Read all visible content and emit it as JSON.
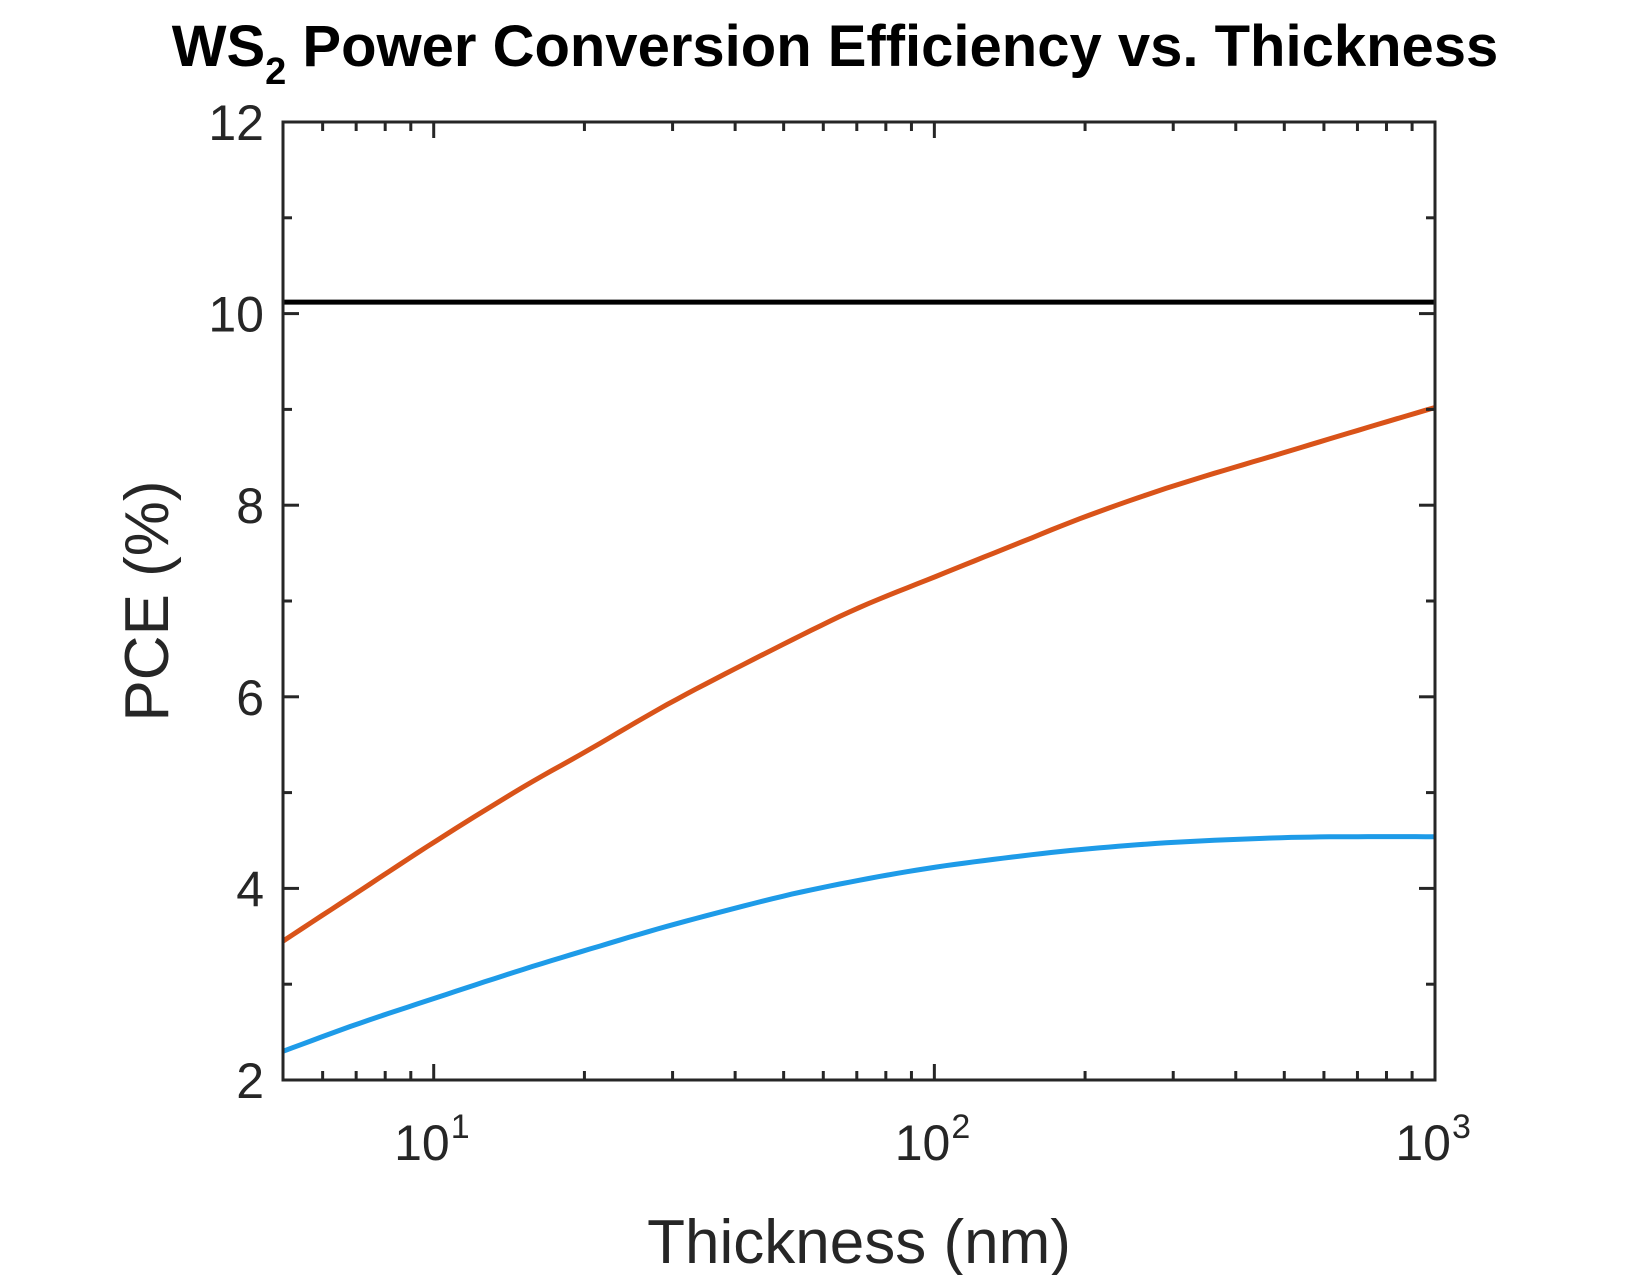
{
  "chart_data": {
    "type": "line",
    "title": {
      "main_prefix": "WS",
      "subscript": "2",
      "main_suffix": " Power Conversion Efficiency vs. Thickness"
    },
    "xlabel": "Thickness (nm)",
    "ylabel": "PCE (%)",
    "xscale": "log",
    "xlim": [
      5,
      1000
    ],
    "ylim": [
      2,
      12
    ],
    "grid": false,
    "x_ticks": [
      {
        "value": 10,
        "base": "10",
        "exponent": "1"
      },
      {
        "value": 100,
        "base": "10",
        "exponent": "2"
      },
      {
        "value": 1000,
        "base": "10",
        "exponent": "3"
      }
    ],
    "y_ticks": [
      {
        "value": 2,
        "label": "2"
      },
      {
        "value": 4,
        "label": "4"
      },
      {
        "value": 6,
        "label": "6"
      },
      {
        "value": 8,
        "label": "8"
      },
      {
        "value": 10,
        "label": "10"
      },
      {
        "value": 12,
        "label": "12"
      }
    ],
    "x": [
      5,
      7,
      10,
      15,
      20,
      30,
      50,
      70,
      100,
      150,
      200,
      300,
      500,
      700,
      1000
    ],
    "series": [
      {
        "color": "#000000",
        "values": [
          10.12,
          10.12,
          10.12,
          10.12,
          10.12,
          10.12,
          10.12,
          10.12,
          10.12,
          10.12,
          10.12,
          10.12,
          10.12,
          10.12,
          10.12
        ]
      },
      {
        "color": "#D95319",
        "values": [
          3.45,
          3.95,
          4.48,
          5.05,
          5.42,
          5.95,
          6.55,
          6.92,
          7.25,
          7.62,
          7.88,
          8.2,
          8.55,
          8.78,
          9.02
        ]
      },
      {
        "color": "#1E9BE8",
        "values": [
          2.3,
          2.58,
          2.85,
          3.15,
          3.35,
          3.62,
          3.92,
          4.08,
          4.22,
          4.34,
          4.41,
          4.48,
          4.53,
          4.54,
          4.54
        ]
      }
    ]
  }
}
